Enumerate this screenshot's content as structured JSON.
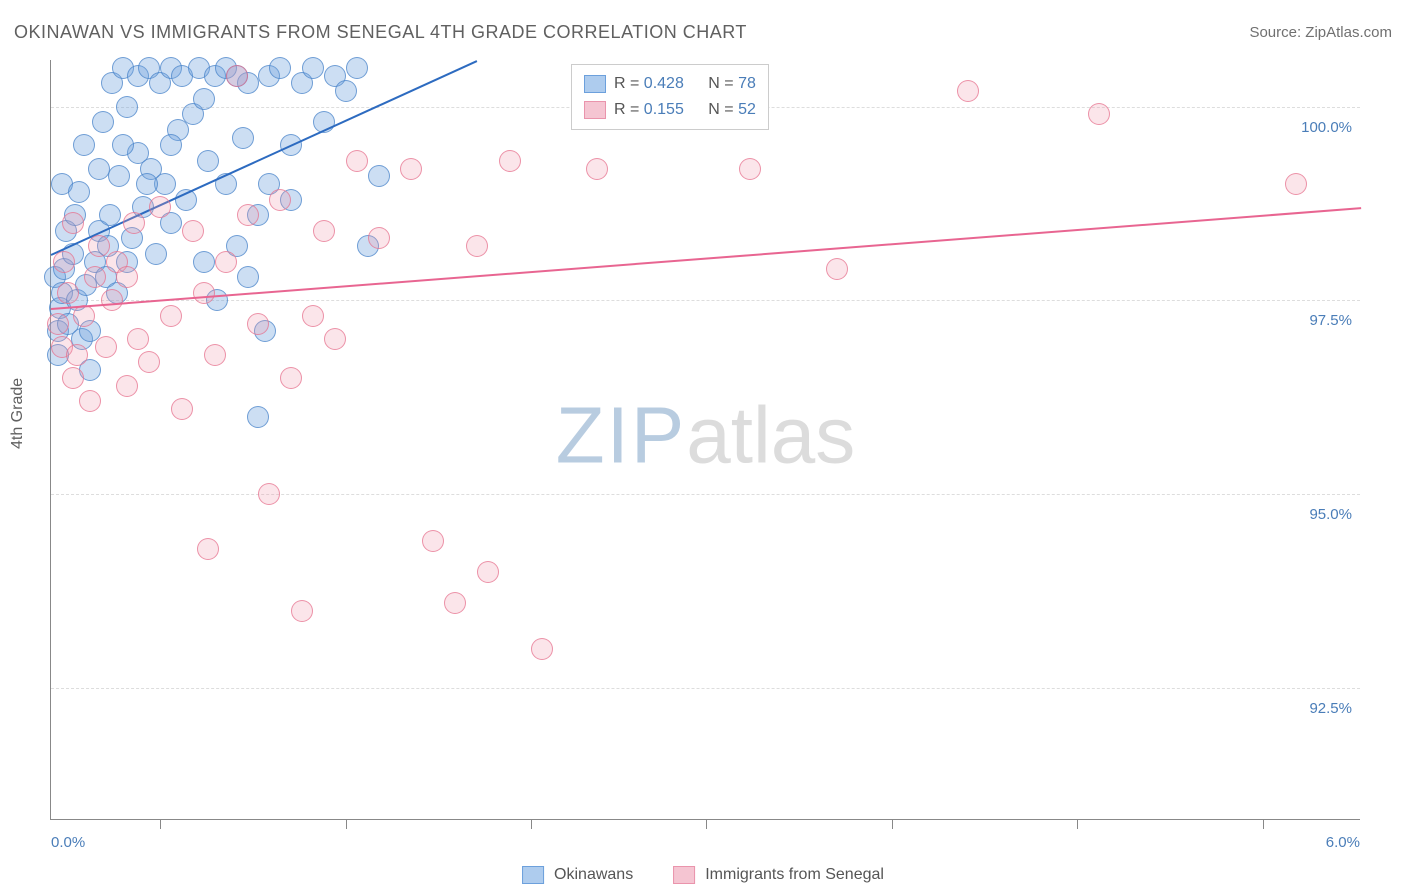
{
  "title": "OKINAWAN VS IMMIGRANTS FROM SENEGAL 4TH GRADE CORRELATION CHART",
  "source": "Source: ZipAtlas.com",
  "y_axis_title": "4th Grade",
  "watermark": {
    "part1": "ZIP",
    "part2": "atlas"
  },
  "chart": {
    "type": "scatter",
    "background_color": "#ffffff",
    "grid_color": "#dddddd",
    "axis_color": "#888888",
    "text_color": "#606060",
    "value_color": "#4a7db8",
    "xlim": [
      0.0,
      6.0
    ],
    "ylim": [
      90.8,
      100.6
    ],
    "x_ticks": [
      0.0,
      6.0
    ],
    "x_tick_positions": [
      0.5,
      1.35,
      2.2,
      3.0,
      3.85,
      4.7,
      5.55
    ],
    "y_grid": [
      92.5,
      95.0,
      97.5,
      100.0
    ],
    "y_tick_labels": [
      "92.5%",
      "95.0%",
      "97.5%",
      "100.0%"
    ],
    "x_tick_labels": [
      "0.0%",
      "6.0%"
    ],
    "point_radius": 11,
    "series": [
      {
        "name": "Okinawans",
        "color_fill": "rgba(108,160,220,0.35)",
        "color_stroke": "#5a8fd0",
        "swatch_fill": "#aeccee",
        "swatch_stroke": "#6ca0dc",
        "r_value": "0.428",
        "n_value": "78",
        "trend": {
          "x1": 0.0,
          "y1": 98.1,
          "x2": 1.95,
          "y2": 100.6,
          "color": "#2d6bc0",
          "width": 2
        },
        "points": [
          [
            0.02,
            97.8
          ],
          [
            0.03,
            97.1
          ],
          [
            0.04,
            97.4
          ],
          [
            0.05,
            97.6
          ],
          [
            0.06,
            97.9
          ],
          [
            0.07,
            98.4
          ],
          [
            0.05,
            99.0
          ],
          [
            0.08,
            97.2
          ],
          [
            0.12,
            97.5
          ],
          [
            0.1,
            98.1
          ],
          [
            0.11,
            98.6
          ],
          [
            0.14,
            97.0
          ],
          [
            0.13,
            98.9
          ],
          [
            0.15,
            99.5
          ],
          [
            0.16,
            97.7
          ],
          [
            0.18,
            96.6
          ],
          [
            0.2,
            98.0
          ],
          [
            0.22,
            98.4
          ],
          [
            0.22,
            99.2
          ],
          [
            0.25,
            97.8
          ],
          [
            0.24,
            99.8
          ],
          [
            0.27,
            98.6
          ],
          [
            0.28,
            100.3
          ],
          [
            0.3,
            97.6
          ],
          [
            0.31,
            99.1
          ],
          [
            0.33,
            100.5
          ],
          [
            0.35,
            98.0
          ],
          [
            0.35,
            100.0
          ],
          [
            0.37,
            98.3
          ],
          [
            0.4,
            99.4
          ],
          [
            0.4,
            100.4
          ],
          [
            0.42,
            98.7
          ],
          [
            0.45,
            100.5
          ],
          [
            0.46,
            99.2
          ],
          [
            0.48,
            98.1
          ],
          [
            0.5,
            100.3
          ],
          [
            0.52,
            99.0
          ],
          [
            0.55,
            100.5
          ],
          [
            0.55,
            98.5
          ],
          [
            0.58,
            99.7
          ],
          [
            0.6,
            100.4
          ],
          [
            0.62,
            98.8
          ],
          [
            0.65,
            99.9
          ],
          [
            0.68,
            100.5
          ],
          [
            0.7,
            98.0
          ],
          [
            0.72,
            99.3
          ],
          [
            0.75,
            100.4
          ],
          [
            0.76,
            97.5
          ],
          [
            0.8,
            99.0
          ],
          [
            0.8,
            100.5
          ],
          [
            0.85,
            98.2
          ],
          [
            0.88,
            99.6
          ],
          [
            0.9,
            100.3
          ],
          [
            0.95,
            98.6
          ],
          [
            0.95,
            96.0
          ],
          [
            1.0,
            99.0
          ],
          [
            1.0,
            100.4
          ],
          [
            0.98,
            97.1
          ],
          [
            1.05,
            100.5
          ],
          [
            1.1,
            98.8
          ],
          [
            1.1,
            99.5
          ],
          [
            1.15,
            100.3
          ],
          [
            1.2,
            100.5
          ],
          [
            1.25,
            99.8
          ],
          [
            1.3,
            100.4
          ],
          [
            1.35,
            100.2
          ],
          [
            1.4,
            100.5
          ],
          [
            1.45,
            98.2
          ],
          [
            1.5,
            99.1
          ],
          [
            0.18,
            97.1
          ],
          [
            0.26,
            98.2
          ],
          [
            0.33,
            99.5
          ],
          [
            0.44,
            99.0
          ],
          [
            0.55,
            99.5
          ],
          [
            0.7,
            100.1
          ],
          [
            0.85,
            100.4
          ],
          [
            0.03,
            96.8
          ],
          [
            0.9,
            97.8
          ]
        ]
      },
      {
        "name": "Immigrants from Senegal",
        "color_fill": "rgba(240,150,170,0.25)",
        "color_stroke": "#e884a0",
        "swatch_fill": "#f5c5d2",
        "swatch_stroke": "#ea94ac",
        "r_value": "0.155",
        "n_value": "52",
        "trend": {
          "x1": 0.0,
          "y1": 97.4,
          "x2": 6.0,
          "y2": 98.7,
          "color": "#e86591",
          "width": 2
        },
        "points": [
          [
            0.03,
            97.2
          ],
          [
            0.05,
            96.9
          ],
          [
            0.06,
            98.0
          ],
          [
            0.08,
            97.6
          ],
          [
            0.1,
            96.5
          ],
          [
            0.1,
            98.5
          ],
          [
            0.12,
            96.8
          ],
          [
            0.15,
            97.3
          ],
          [
            0.18,
            96.2
          ],
          [
            0.2,
            97.8
          ],
          [
            0.22,
            98.2
          ],
          [
            0.25,
            96.9
          ],
          [
            0.28,
            97.5
          ],
          [
            0.3,
            98.0
          ],
          [
            0.35,
            96.4
          ],
          [
            0.38,
            98.5
          ],
          [
            0.4,
            97.0
          ],
          [
            0.45,
            96.7
          ],
          [
            0.5,
            98.7
          ],
          [
            0.55,
            97.3
          ],
          [
            0.6,
            96.1
          ],
          [
            0.65,
            98.4
          ],
          [
            0.7,
            97.6
          ],
          [
            0.75,
            96.8
          ],
          [
            0.8,
            98.0
          ],
          [
            0.85,
            100.4
          ],
          [
            0.9,
            98.6
          ],
          [
            0.95,
            97.2
          ],
          [
            1.0,
            95.0
          ],
          [
            1.05,
            98.8
          ],
          [
            1.1,
            96.5
          ],
          [
            1.15,
            93.5
          ],
          [
            1.2,
            97.3
          ],
          [
            1.25,
            98.4
          ],
          [
            1.3,
            97.0
          ],
          [
            1.4,
            99.3
          ],
          [
            1.5,
            98.3
          ],
          [
            1.65,
            99.2
          ],
          [
            1.75,
            94.4
          ],
          [
            1.85,
            93.6
          ],
          [
            1.95,
            98.2
          ],
          [
            2.0,
            94.0
          ],
          [
            2.1,
            99.3
          ],
          [
            2.25,
            93.0
          ],
          [
            2.5,
            99.2
          ],
          [
            3.2,
            99.2
          ],
          [
            3.6,
            97.9
          ],
          [
            4.2,
            100.2
          ],
          [
            4.8,
            99.9
          ],
          [
            5.7,
            99.0
          ],
          [
            0.72,
            94.3
          ],
          [
            0.35,
            97.8
          ]
        ]
      }
    ]
  },
  "stats_legend": {
    "r_label": "R =",
    "n_label": "N ="
  },
  "bottom_legend": {
    "items": [
      "Okinawans",
      "Immigrants from Senegal"
    ]
  }
}
